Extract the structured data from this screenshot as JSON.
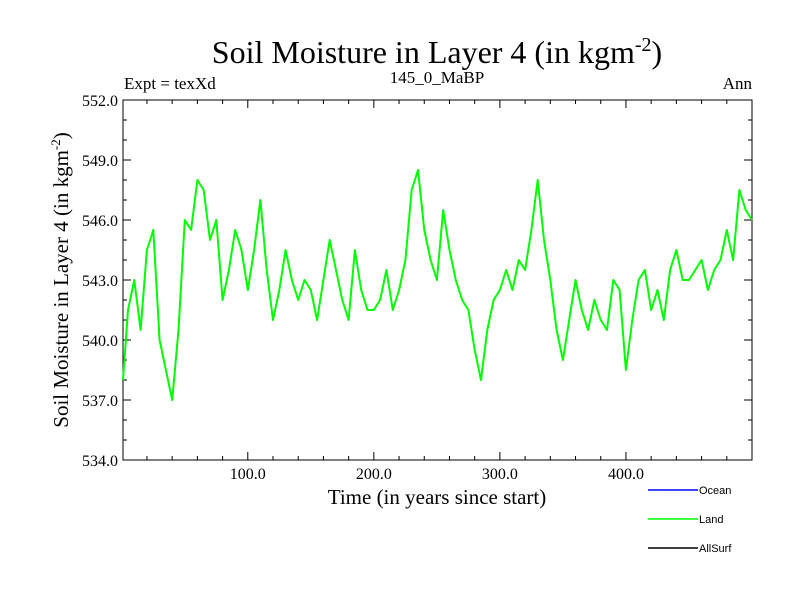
{
  "chart_data": {
    "type": "line",
    "title_main": "Soil Moisture in Layer 4 (in kgm",
    "title_sup": "-2",
    "title_close": ")",
    "subtitle_left": "Expt = texXd",
    "subtitle_center": "145_0_MaBP",
    "subtitle_right": "Ann",
    "xlabel": "Time (in years since start)",
    "ylabel_main": "Soil Moisture in Layer 4 (in kgm",
    "ylabel_sup": "-2",
    "ylabel_close": ")",
    "xlim": [
      1,
      500
    ],
    "ylim": [
      534.0,
      552.0
    ],
    "xticks": [
      100,
      200,
      300,
      400
    ],
    "xtick_labels": [
      "100.0",
      "200.0",
      "300.0",
      "400.0"
    ],
    "yticks": [
      534,
      537,
      540,
      543,
      546,
      549,
      552
    ],
    "ytick_labels": [
      "534.0",
      "537.0",
      "540.0",
      "543.0",
      "546.0",
      "549.0",
      "552.0"
    ],
    "legend": [
      {
        "name": "Ocean",
        "color": "#0000ff"
      },
      {
        "name": "Land",
        "color": "#00ff00"
      },
      {
        "name": "AllSurf",
        "color": "#000000"
      }
    ],
    "series": [
      {
        "name": "Land",
        "color": "#00ff00",
        "x": [
          1,
          5,
          10,
          15,
          20,
          25,
          30,
          35,
          40,
          45,
          50,
          55,
          60,
          65,
          70,
          75,
          80,
          85,
          90,
          95,
          100,
          105,
          110,
          115,
          120,
          125,
          130,
          135,
          140,
          145,
          150,
          155,
          160,
          165,
          170,
          175,
          180,
          185,
          190,
          195,
          200,
          205,
          210,
          215,
          220,
          225,
          230,
          235,
          240,
          245,
          250,
          255,
          260,
          265,
          270,
          275,
          280,
          285,
          290,
          295,
          300,
          305,
          310,
          315,
          320,
          325,
          330,
          335,
          340,
          345,
          350,
          355,
          360,
          365,
          370,
          375,
          380,
          385,
          390,
          395,
          400,
          405,
          410,
          415,
          420,
          425,
          430,
          435,
          440,
          445,
          450,
          455,
          460,
          465,
          470,
          475,
          480,
          485,
          490,
          495,
          500
        ],
        "values": [
          538.0,
          541.5,
          543.0,
          540.5,
          544.5,
          545.5,
          540.0,
          538.5,
          537.0,
          540.5,
          546.0,
          545.5,
          548.0,
          547.5,
          545.0,
          546.0,
          542.0,
          543.5,
          545.5,
          544.5,
          542.5,
          544.5,
          547.0,
          543.5,
          541.0,
          542.5,
          544.5,
          543.0,
          542.0,
          543.0,
          542.5,
          541.0,
          543.0,
          545.0,
          543.5,
          542.0,
          541.0,
          544.5,
          542.5,
          541.5,
          541.5,
          542.0,
          543.5,
          541.5,
          542.5,
          544.0,
          547.5,
          548.5,
          545.5,
          544.0,
          543.0,
          546.5,
          544.5,
          543.0,
          542.0,
          541.5,
          539.5,
          538.0,
          540.5,
          542.0,
          542.5,
          543.5,
          542.5,
          544.0,
          543.5,
          545.5,
          548.0,
          545.0,
          543.0,
          540.5,
          539.0,
          541.0,
          543.0,
          541.5,
          540.5,
          542.0,
          541.0,
          540.5,
          543.0,
          542.5,
          538.5,
          541.0,
          543.0,
          543.5,
          541.5,
          542.5,
          541.0,
          543.5,
          544.5,
          543.0,
          543.0,
          543.5,
          544.0,
          542.5,
          543.5,
          544.0,
          545.5,
          544.0,
          547.5,
          546.5,
          546.0
        ]
      },
      {
        "name": "Ocean",
        "color": "#0000ff",
        "x": [],
        "values": []
      },
      {
        "name": "AllSurf",
        "color": "#000000",
        "x": [],
        "values": []
      }
    ]
  }
}
